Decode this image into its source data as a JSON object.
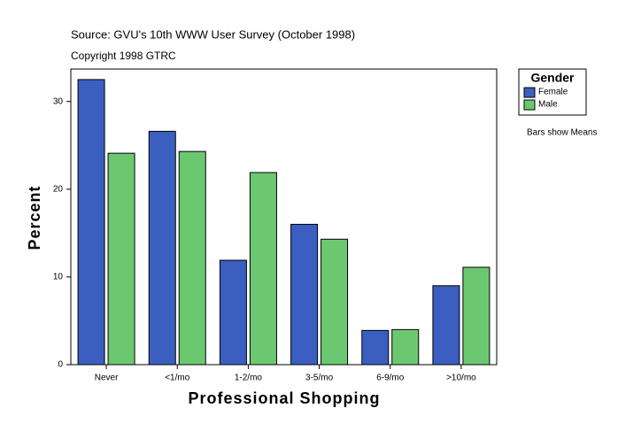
{
  "chart_data": {
    "type": "bar",
    "subtitle": "Source: GVU's 10th WWW User Survey (October 1998)",
    "copyright": "Copyright 1998 GTRC",
    "note": "Bars show Means",
    "x_label": "Professional Shopping",
    "y_label": "Percent",
    "legend_title": "Gender",
    "categories": [
      "Never",
      "<1/mo",
      "1-2/mo",
      "3-5/mo",
      "6-9/mo",
      ">10/mo"
    ],
    "series": [
      {
        "name": "Female",
        "color": "#3a5fc0",
        "values": [
          32.5,
          26.6,
          11.9,
          16.0,
          3.9,
          9.0
        ]
      },
      {
        "name": "Male",
        "color": "#6cc870",
        "values": [
          24.1,
          24.3,
          21.9,
          14.3,
          4.0,
          11.1
        ]
      }
    ],
    "ylim": [
      0,
      33.7
    ],
    "yticks": [
      0,
      10,
      20,
      30
    ]
  }
}
